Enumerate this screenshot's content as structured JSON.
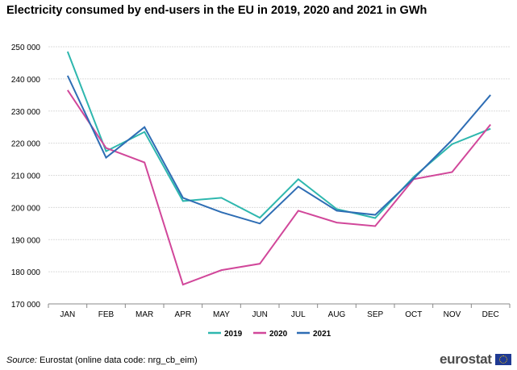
{
  "chart_data": {
    "type": "line",
    "title": "Electricity consumed by end-users in the EU in 2019, 2020 and 2021 in GWh",
    "categories": [
      "JAN",
      "FEB",
      "MAR",
      "APR",
      "MAY",
      "JUN",
      "JUL",
      "AUG",
      "SEP",
      "OCT",
      "NOV",
      "DEC"
    ],
    "ylim": [
      170000,
      250000
    ],
    "yticks": [
      170000,
      180000,
      190000,
      200000,
      210000,
      220000,
      230000,
      240000,
      250000
    ],
    "ytick_labels": [
      "170 000",
      "180 000",
      "190 000",
      "200 000",
      "210 000",
      "220 000",
      "230 000",
      "240 000",
      "250 000"
    ],
    "grid": true,
    "legend_position": "bottom",
    "series": [
      {
        "name": "2019",
        "color": "#2eb7ae",
        "values": [
          248500,
          217500,
          223500,
          202000,
          203000,
          196800,
          208800,
          199500,
          196700,
          209500,
          219700,
          224500
        ]
      },
      {
        "name": "2020",
        "color": "#d1479a",
        "values": [
          236500,
          218500,
          214000,
          176000,
          180500,
          182500,
          199000,
          195300,
          194200,
          208800,
          211000,
          225800
        ]
      },
      {
        "name": "2021",
        "color": "#2e6db4",
        "values": [
          241000,
          215500,
          225000,
          203000,
          198500,
          195000,
          206500,
          199000,
          197700,
          209000,
          221000,
          235000
        ]
      }
    ]
  },
  "source": {
    "label": "Source:",
    "text": " Eurostat (online data code: nrg_cb_eim)"
  },
  "logo": {
    "text": "eurostat"
  }
}
